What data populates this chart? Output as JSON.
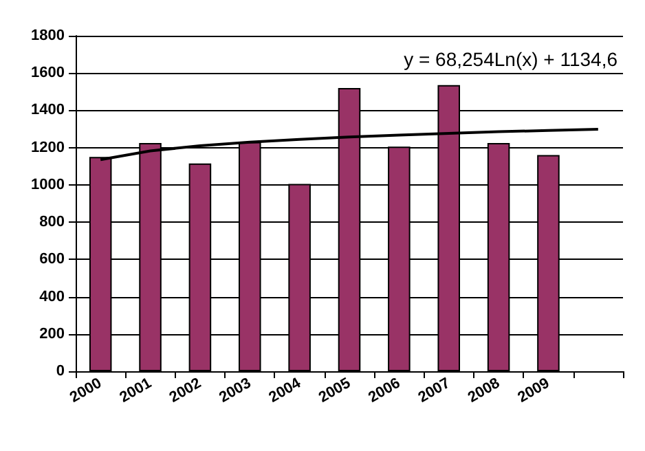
{
  "chart_data": {
    "type": "bar",
    "categories": [
      "2000",
      "2001",
      "2002",
      "2003",
      "2004",
      "2005",
      "2006",
      "2007",
      "2008",
      "2009",
      null
    ],
    "series": [
      {
        "color": "#993366",
        "values": [
          1150,
          1225,
          1115,
          1230,
          1005,
          1520,
          1205,
          1535,
          1225,
          1160,
          null
        ]
      },
      {
        "type": "line",
        "color": "#000000",
        "marker": "none",
        "line_style": "solid",
        "values": [
          1135,
          1182,
          1210,
          1229,
          1244,
          1257,
          1267,
          1276,
          1285,
          1292,
          1298
        ]
      }
    ],
    "annotations": [
      "y = 68,254Ln(x) + 1134,6"
    ],
    "ylim": [
      0,
      1800
    ],
    "yticks": [
      0,
      200,
      400,
      600,
      800,
      1000,
      1200,
      1400,
      1600,
      1800
    ],
    "grid": "y"
  }
}
